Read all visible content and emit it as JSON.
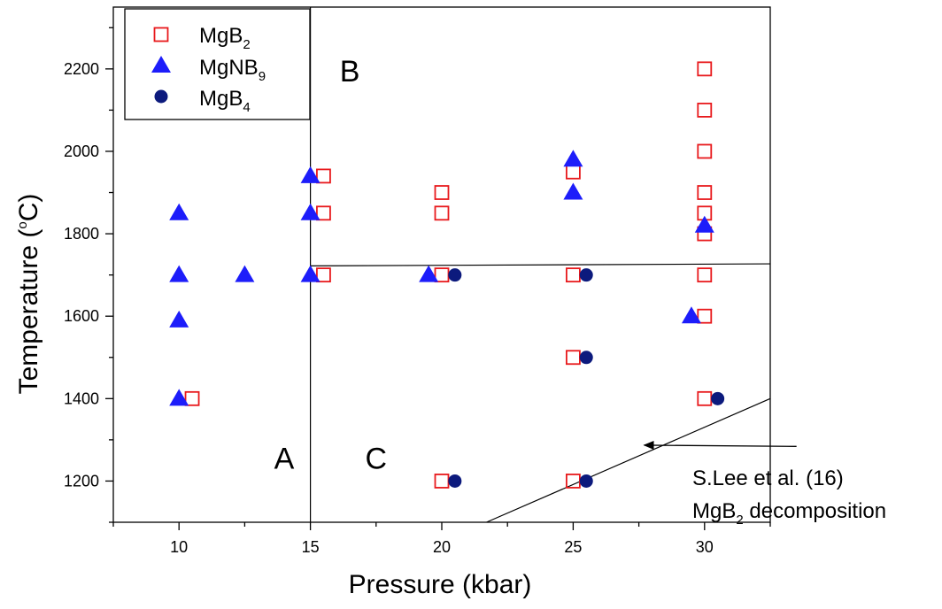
{
  "chart_data": {
    "type": "scatter",
    "xlabel": "Pressure (kbar)",
    "ylabel_parts": [
      "Temperature (",
      "o",
      "C)"
    ],
    "xlim": [
      7.5,
      32.5
    ],
    "ylim": [
      1100,
      2350
    ],
    "x_ticks": [
      10,
      15,
      20,
      25,
      30
    ],
    "y_ticks": [
      1200,
      1400,
      1600,
      1800,
      2000,
      2200
    ],
    "legend_position": "top-left",
    "series": [
      {
        "name_base": "MgB",
        "name_sub": "2",
        "marker": "open-square",
        "color": "#e8191c",
        "points": [
          [
            10.5,
            1400
          ],
          [
            15.5,
            1940
          ],
          [
            15.5,
            1850
          ],
          [
            15.5,
            1700
          ],
          [
            20,
            1900
          ],
          [
            20,
            1850
          ],
          [
            20,
            1700
          ],
          [
            20,
            1200
          ],
          [
            25,
            1950
          ],
          [
            25,
            1700
          ],
          [
            25,
            1500
          ],
          [
            25,
            1200
          ],
          [
            30,
            2200
          ],
          [
            30,
            2100
          ],
          [
            30,
            2000
          ],
          [
            30,
            1900
          ],
          [
            30,
            1850
          ],
          [
            30,
            1800
          ],
          [
            30,
            1700
          ],
          [
            30,
            1600
          ],
          [
            30,
            1400
          ]
        ]
      },
      {
        "name_base": "MgNB",
        "name_sub": "9",
        "marker": "filled-triangle",
        "color": "#1d1dfa",
        "points": [
          [
            10,
            1850
          ],
          [
            10,
            1700
          ],
          [
            10,
            1590
          ],
          [
            10,
            1400
          ],
          [
            12.5,
            1700
          ],
          [
            15,
            1940
          ],
          [
            15,
            1850
          ],
          [
            15,
            1700
          ],
          [
            19.5,
            1700
          ],
          [
            25,
            1980
          ],
          [
            25,
            1900
          ],
          [
            30,
            1820
          ],
          [
            29.5,
            1600
          ]
        ]
      },
      {
        "name_base": "MgB",
        "name_sub": "4",
        "marker": "filled-circle",
        "color": "#0c1a7d",
        "points": [
          [
            20.5,
            1700
          ],
          [
            20.5,
            1200
          ],
          [
            25.5,
            1700
          ],
          [
            25.5,
            1500
          ],
          [
            25.5,
            1200
          ],
          [
            30.5,
            1400
          ]
        ]
      }
    ],
    "boundaries": [
      {
        "x1": 15,
        "y1": 1100,
        "x2": 15,
        "y2": 2350
      },
      {
        "x1": 15,
        "y1": 1722,
        "x2": 32.5,
        "y2": 1727
      },
      {
        "x1": 21.7,
        "y1": 1100,
        "x2": 32.5,
        "y2": 1400
      }
    ],
    "region_labels": [
      {
        "text": "A",
        "x": 14.0,
        "y": 1230
      },
      {
        "text": "B",
        "x": 16.5,
        "y": 2170
      },
      {
        "text": "C",
        "x": 17.5,
        "y": 1230
      }
    ],
    "annotation": {
      "line1": "S.Lee et al. (16)",
      "line2_base": "MgB",
      "line2_sub": "2",
      "line2_rest": " decomposition",
      "arrow_from": [
        33.5,
        1284
      ],
      "arrow_to": [
        27.7,
        1287
      ]
    }
  }
}
